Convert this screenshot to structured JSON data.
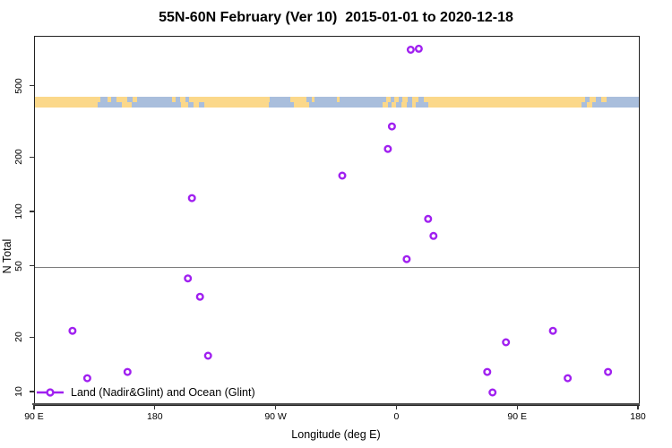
{
  "title": "55N-60N February (Ver 10)  2015-01-01 to 2020-12-18",
  "legend": {
    "label": "Land (Nadir&Glint) and Ocean (Glint)"
  },
  "colors": {
    "marker": "#A020F0",
    "land": "#FBD88A",
    "ocean": "#A9BEDC",
    "reference_line": "#7d7d7d",
    "axis": "#222222"
  },
  "chart_data": {
    "type": "scatter",
    "title": "55N-60N February (Ver 10)  2015-01-01 to 2020-12-18",
    "xlabel": "Longitude (deg E)",
    "ylabel": "N Total",
    "grid": false,
    "legend_position": "bottom-left-inside",
    "x_axis": {
      "note": "longitude axis wraps eastward from 90E through 180, 90W, 0, 90E to 180; plot coordinate = deg east continuing past 360",
      "range": [
        90,
        540
      ],
      "ticks": [
        {
          "lon": 90,
          "label": "90 E"
        },
        {
          "lon": 180,
          "label": "180"
        },
        {
          "lon": 270,
          "label": "90 W"
        },
        {
          "lon": 360,
          "label": "0"
        },
        {
          "lon": 450,
          "label": "90 E"
        },
        {
          "lon": 540,
          "label": "180"
        }
      ]
    },
    "y_axis": {
      "scale": "log10",
      "range": [
        8.5,
        950
      ],
      "ticks": [
        10,
        20,
        50,
        100,
        200,
        500
      ]
    },
    "reference_line_y": 50,
    "map_strip": {
      "description": "world coastline strip for 55N-60N drawn across plot near N=420; land=yellow, ocean=blue-gray; two latitude rows",
      "rows": [
        {
          "row": "north",
          "segments": [
            [
              90,
              139,
              "land"
            ],
            [
              139,
              144,
              "ocean"
            ],
            [
              144,
              147,
              "land"
            ],
            [
              147,
              151,
              "ocean"
            ],
            [
              151,
              159,
              "land"
            ],
            [
              159,
              163,
              "ocean"
            ],
            [
              163,
              166,
              "land"
            ],
            [
              166,
              192,
              "ocean"
            ],
            [
              192,
              195,
              "land"
            ],
            [
              195,
              198,
              "ocean"
            ],
            [
              198,
              202,
              "land"
            ],
            [
              202,
              205,
              "ocean"
            ],
            [
              205,
              265,
              "land"
            ],
            [
              265,
              280,
              "ocean"
            ],
            [
              280,
              292,
              "land"
            ],
            [
              292,
              296,
              "ocean"
            ],
            [
              296,
              298,
              "land"
            ],
            [
              298,
              315,
              "ocean"
            ],
            [
              315,
              317,
              "land"
            ],
            [
              317,
              352,
              "ocean"
            ],
            [
              352,
              355,
              "land"
            ],
            [
              355,
              358,
              "ocean"
            ],
            [
              358,
              361,
              "land"
            ],
            [
              361,
              364,
              "ocean"
            ],
            [
              364,
              368,
              "land"
            ],
            [
              368,
              371,
              "ocean"
            ],
            [
              371,
              376,
              "land"
            ],
            [
              376,
              380,
              "ocean"
            ],
            [
              380,
              500,
              "land"
            ],
            [
              500,
              503,
              "ocean"
            ],
            [
              503,
              508,
              "land"
            ],
            [
              508,
              512,
              "ocean"
            ],
            [
              512,
              516,
              "land"
            ],
            [
              516,
              540,
              "ocean"
            ]
          ]
        },
        {
          "row": "south",
          "segments": [
            [
              90,
              137,
              "land"
            ],
            [
              137,
              155,
              "ocean"
            ],
            [
              155,
              162,
              "land"
            ],
            [
              162,
              199,
              "ocean"
            ],
            [
              199,
              204,
              "land"
            ],
            [
              204,
              208,
              "ocean"
            ],
            [
              208,
              212,
              "land"
            ],
            [
              212,
              216,
              "ocean"
            ],
            [
              216,
              264,
              "land"
            ],
            [
              264,
              283,
              "ocean"
            ],
            [
              283,
              294,
              "land"
            ],
            [
              294,
              349,
              "ocean"
            ],
            [
              349,
              353,
              "land"
            ],
            [
              353,
              356,
              "ocean"
            ],
            [
              356,
              359,
              "land"
            ],
            [
              359,
              363,
              "ocean"
            ],
            [
              363,
              367,
              "land"
            ],
            [
              367,
              371,
              "ocean"
            ],
            [
              371,
              374,
              "land"
            ],
            [
              374,
              383,
              "ocean"
            ],
            [
              383,
              497,
              "land"
            ],
            [
              497,
              501,
              "ocean"
            ],
            [
              501,
              505,
              "land"
            ],
            [
              505,
              540,
              "ocean"
            ]
          ]
        }
      ]
    },
    "series": [
      {
        "name": "Land (Nadir&Glint) and Ocean (Glint)",
        "marker": "open-circle",
        "color": "#A020F0",
        "points": [
          {
            "lon": 370,
            "lon_east": 10,
            "n": 800
          },
          {
            "lon": 376,
            "lon_east": 16,
            "n": 810
          },
          {
            "lon": 356,
            "lon_east": -4,
            "n": 300
          },
          {
            "lon": 353,
            "lon_east": -7,
            "n": 225
          },
          {
            "lon": 319,
            "lon_east": -41,
            "n": 160
          },
          {
            "lon": 207,
            "lon_east": -153,
            "n": 120
          },
          {
            "lon": 383,
            "lon_east": 23,
            "n": 92
          },
          {
            "lon": 387,
            "lon_east": 27,
            "n": 74
          },
          {
            "lon": 367,
            "lon_east": 7,
            "n": 55
          },
          {
            "lon": 204,
            "lon_east": -156,
            "n": 43
          },
          {
            "lon": 213,
            "lon_east": -147,
            "n": 34
          },
          {
            "lon": 118,
            "lon_east": 118,
            "n": 22
          },
          {
            "lon": 476,
            "lon_east": 116,
            "n": 22
          },
          {
            "lon": 441,
            "lon_east": 81,
            "n": 19
          },
          {
            "lon": 219,
            "lon_east": -141,
            "n": 16
          },
          {
            "lon": 129,
            "lon_east": 129,
            "n": 12
          },
          {
            "lon": 159,
            "lon_east": 159,
            "n": 13
          },
          {
            "lon": 427,
            "lon_east": 67,
            "n": 13
          },
          {
            "lon": 487,
            "lon_east": 127,
            "n": 12
          },
          {
            "lon": 517,
            "lon_east": 157,
            "n": 13
          },
          {
            "lon": 431,
            "lon_east": 71,
            "n": 10
          }
        ]
      }
    ]
  }
}
